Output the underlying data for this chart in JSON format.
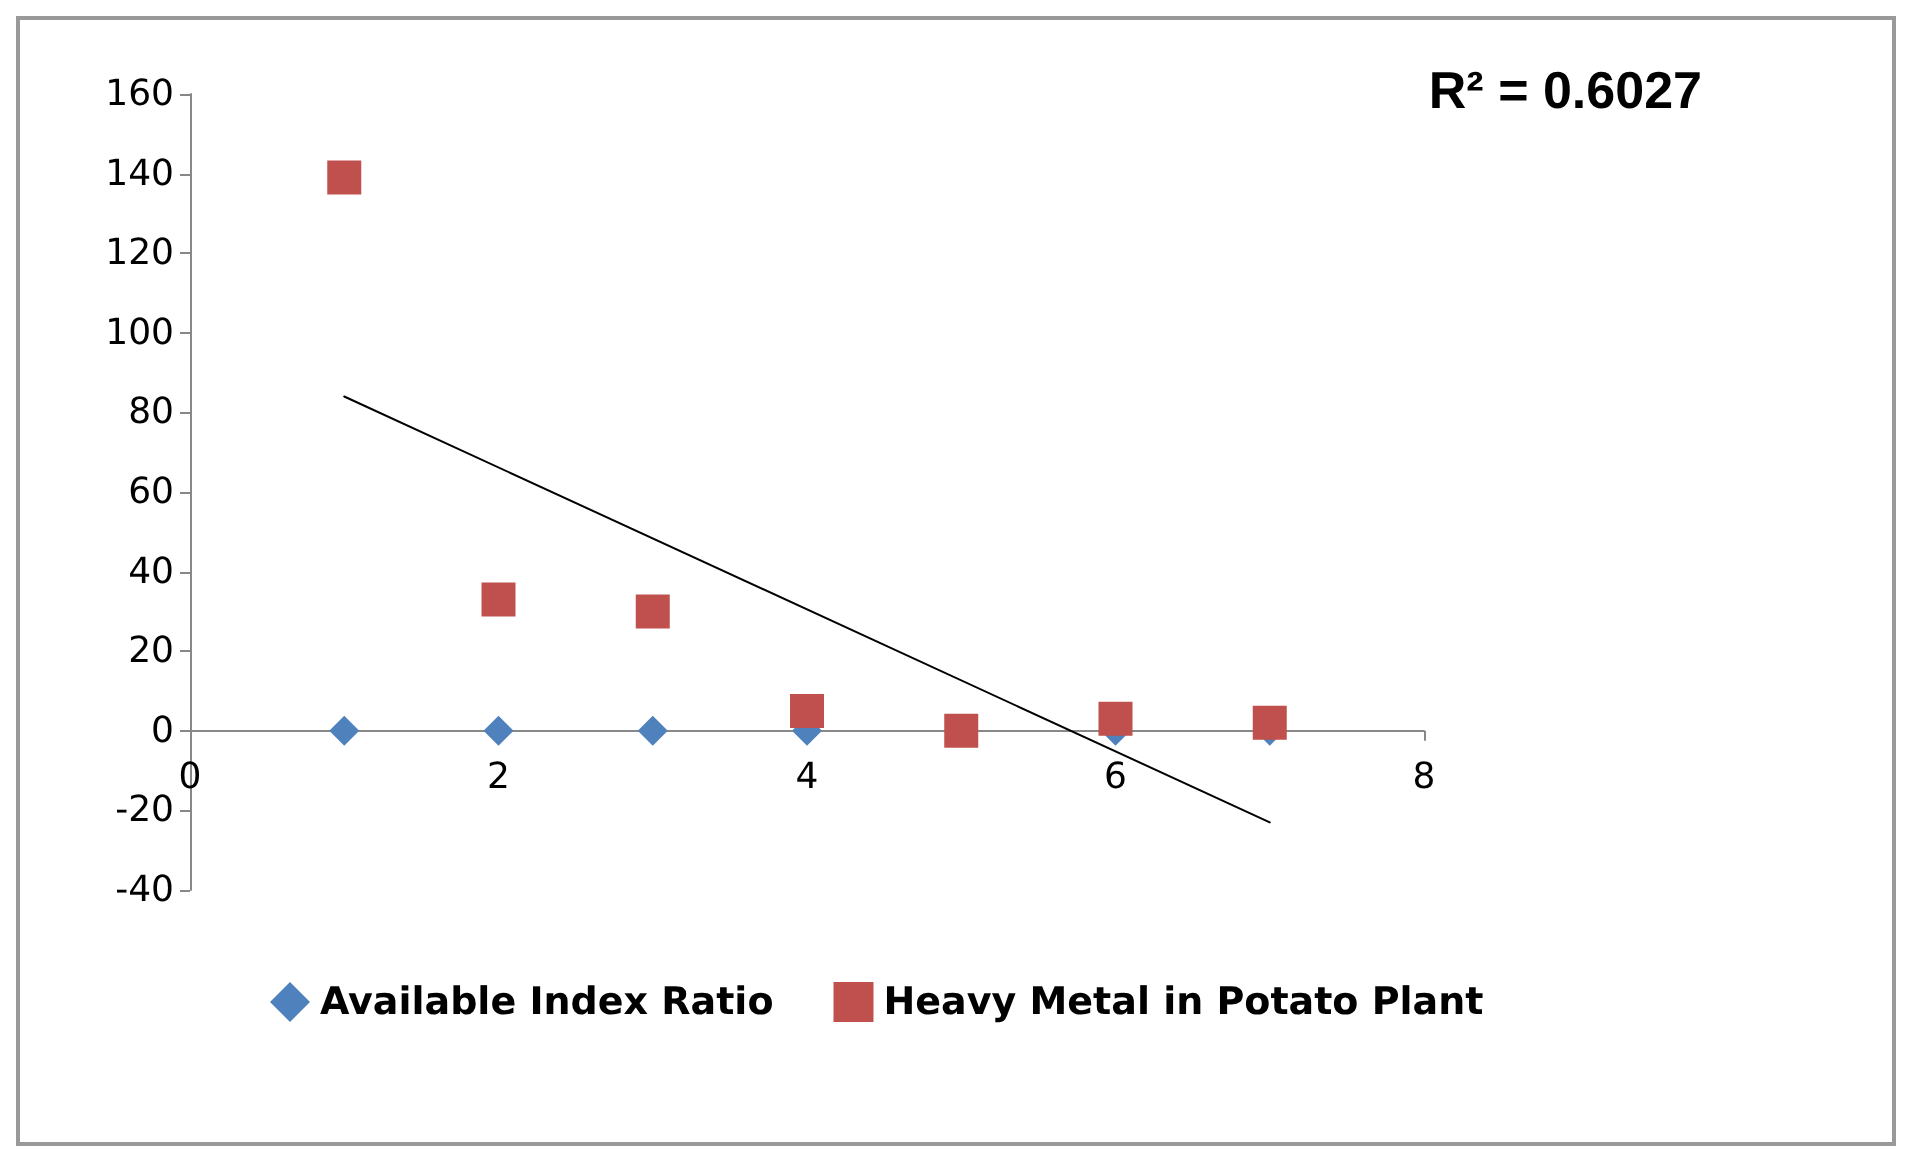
{
  "chart_data": {
    "type": "scatter",
    "annotations": [
      "R² = 0.6027"
    ],
    "series": [
      {
        "name": "Available Index Ratio",
        "color": "#4f81bd",
        "marker": "diamond",
        "x": [
          1,
          2,
          3,
          4,
          5,
          6,
          7
        ],
        "values": [
          0,
          0,
          0,
          0,
          null,
          0,
          0
        ]
      },
      {
        "name": "Heavy Metal in Potato Plant",
        "color": "#c0504d",
        "marker": "square",
        "x": [
          1,
          2,
          3,
          4,
          5,
          6,
          7
        ],
        "values": [
          139,
          33,
          30,
          5,
          0,
          3,
          2
        ]
      },
      {
        "type": "line",
        "color": "#000000",
        "marker": "none",
        "x": [
          1,
          7
        ],
        "values": [
          84,
          -23
        ]
      }
    ],
    "xlim": [
      0,
      8
    ],
    "xticks": [
      0,
      2,
      4,
      6,
      8
    ],
    "ylim": [
      -40,
      160
    ],
    "yticks": [
      -40,
      -20,
      0,
      20,
      40,
      60,
      80,
      100,
      120,
      140,
      160
    ],
    "legend": "bottom"
  }
}
